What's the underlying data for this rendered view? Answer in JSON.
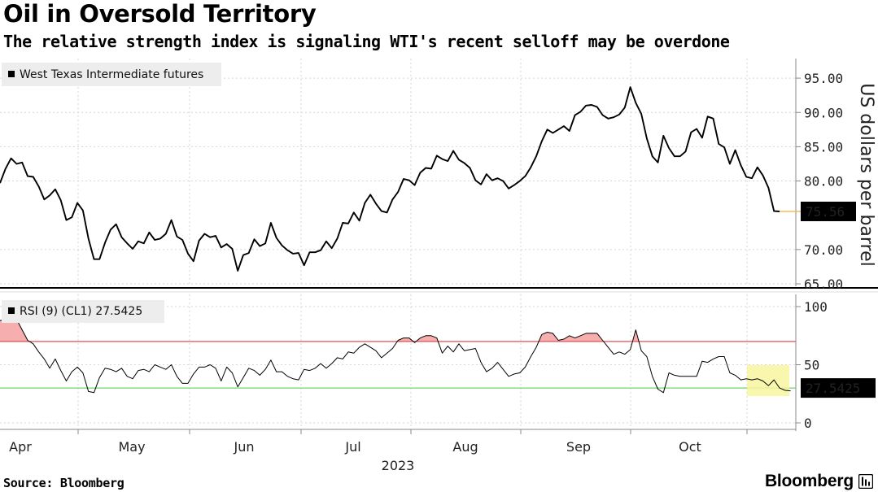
{
  "header": {
    "title": "Oil in Oversold Territory",
    "subtitle": "The relative strength index is signaling WTI's recent selloff may be overdone"
  },
  "footer": {
    "source": "Source: Bloomberg",
    "brand": "Bloomberg"
  },
  "colors": {
    "line": "#000000",
    "overbought_line": "#e05252",
    "oversold_line": "#6dd46d",
    "overbought_fill": "#f4a0a0",
    "highlight": "#f8f5a0",
    "price_marker": "#f0b040"
  },
  "chart_data": [
    {
      "type": "line",
      "series": [
        {
          "name": "West Texas Intermediate futures",
          "values": [
            79.7,
            81.8,
            83.3,
            82.5,
            82.7,
            80.7,
            80.6,
            79.2,
            77.3,
            77.9,
            78.8,
            77.2,
            74.3,
            74.7,
            76.8,
            75.7,
            71.6,
            68.6,
            68.6,
            71.0,
            72.9,
            73.7,
            71.8,
            70.9,
            70.1,
            71.2,
            70.9,
            72.5,
            71.4,
            71.6,
            72.3,
            74.3,
            71.9,
            71.4,
            69.4,
            68.3,
            71.3,
            72.3,
            71.8,
            72.0,
            70.3,
            70.8,
            70.1,
            66.9,
            69.2,
            69.5,
            71.5,
            70.5,
            70.9,
            73.9,
            71.7,
            70.6,
            69.9,
            69.4,
            69.5,
            67.7,
            69.6,
            69.6,
            69.9,
            71.2,
            70.2,
            71.6,
            73.9,
            73.8,
            75.4,
            74.2,
            76.8,
            78.0,
            76.7,
            75.6,
            75.4,
            77.3,
            78.4,
            80.3,
            80.1,
            79.4,
            81.2,
            81.9,
            81.8,
            83.7,
            83.2,
            82.9,
            84.4,
            83.1,
            82.6,
            81.9,
            80.1,
            79.5,
            81.0,
            80.1,
            80.4,
            80.0,
            78.9,
            79.4,
            80.0,
            80.7,
            82.0,
            83.6,
            85.8,
            87.5,
            87.0,
            87.5,
            88.0,
            87.3,
            89.6,
            90.1,
            91.0,
            91.1,
            90.8,
            89.6,
            89.1,
            89.3,
            89.7,
            90.7,
            93.7,
            91.4,
            89.8,
            86.2,
            83.6,
            82.7,
            86.6,
            84.8,
            83.6,
            83.6,
            84.3,
            87.1,
            87.6,
            86.3,
            89.4,
            89.1,
            85.4,
            84.9,
            82.5,
            84.5,
            82.3,
            80.6,
            80.4,
            82.0,
            80.8,
            79.0,
            75.6,
            75.56
          ]
        }
      ],
      "x_labels": [
        "Apr",
        "May",
        "Jun",
        "Jul",
        "Aug",
        "Sep",
        "Oct"
      ],
      "x_year_label": "2023",
      "yticks": [
        "95.00",
        "90.00",
        "85.00",
        "80.00",
        "70.00",
        "65.00"
      ],
      "ylabel": "US dollars per barrel",
      "last_value": "75.56",
      "ylim": [
        64,
        98
      ]
    },
    {
      "type": "line",
      "series": [
        {
          "name": "RSI (9) (CL1) 27.5425",
          "values": [
            88,
            89,
            91,
            89,
            80,
            71,
            68,
            61,
            55,
            47,
            55,
            45,
            36,
            44,
            48,
            43,
            27,
            26,
            39,
            47,
            46,
            44,
            47,
            40,
            38,
            45,
            46,
            44,
            50,
            48,
            46,
            50,
            40,
            34,
            34,
            42,
            48,
            48,
            50,
            47,
            36,
            48,
            43,
            31,
            39,
            47,
            45,
            41,
            46,
            54,
            44,
            44,
            40,
            38,
            37,
            46,
            45,
            47,
            51,
            47,
            51,
            56,
            55,
            61,
            60,
            65,
            68,
            65,
            62,
            56,
            60,
            64,
            71,
            73,
            73,
            69,
            73,
            75,
            75,
            73,
            60,
            66,
            61,
            68,
            62,
            63,
            64,
            52,
            44,
            47,
            52,
            46,
            40,
            42,
            43,
            48,
            57,
            65,
            76,
            78,
            77,
            71,
            72,
            75,
            73,
            75,
            77,
            77,
            77,
            71,
            65,
            59,
            61,
            59,
            63,
            80,
            62,
            57,
            40,
            29,
            26,
            43,
            41,
            40,
            40,
            40,
            40,
            53,
            52,
            55,
            57,
            57,
            43,
            41,
            37,
            38,
            37,
            38,
            36,
            32,
            37,
            30,
            28,
            27.5425
          ]
        }
      ],
      "yticks": [
        "100",
        "50",
        "0"
      ],
      "reference_lines": [
        70,
        30
      ],
      "last_value": "27.5425",
      "ylim": [
        0,
        100
      ]
    }
  ]
}
